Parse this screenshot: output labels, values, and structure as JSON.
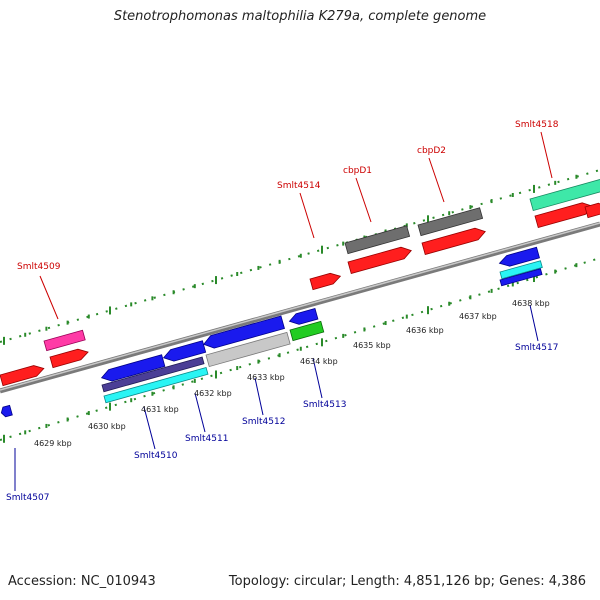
{
  "title": "Stenotrophomonas maltophilia K279a, complete genome",
  "footer": {
    "accession": "Accession: NC_010943",
    "summary": "Topology: circular; Length: 4,851,126 bp; Genes: 4,386"
  },
  "colors": {
    "forward_label": "#cc0000",
    "reverse_label": "#000099",
    "backbone": "#888888",
    "tick": "#2a8a2a"
  },
  "kbp_labels": [
    "4629 kbp",
    "4630 kbp",
    "4631 kbp",
    "4632 kbp",
    "4633 kbp",
    "4634 kbp",
    "4635 kbp",
    "4636 kbp",
    "4637 kbp",
    "4638 kbp"
  ],
  "gene_labels": [
    {
      "id": "Smlt4509",
      "strand": "forward"
    },
    {
      "id": "Smlt4514",
      "strand": "forward"
    },
    {
      "id": "cbpD1",
      "strand": "forward"
    },
    {
      "id": "cbpD2",
      "strand": "forward"
    },
    {
      "id": "Smlt4518",
      "strand": "forward"
    },
    {
      "id": "Smlt4507",
      "strand": "reverse"
    },
    {
      "id": "Smlt4510",
      "strand": "reverse"
    },
    {
      "id": "Smlt4511",
      "strand": "reverse"
    },
    {
      "id": "Smlt4512",
      "strand": "reverse"
    },
    {
      "id": "Smlt4513",
      "strand": "reverse"
    },
    {
      "id": "Smlt4517",
      "strand": "reverse"
    }
  ]
}
